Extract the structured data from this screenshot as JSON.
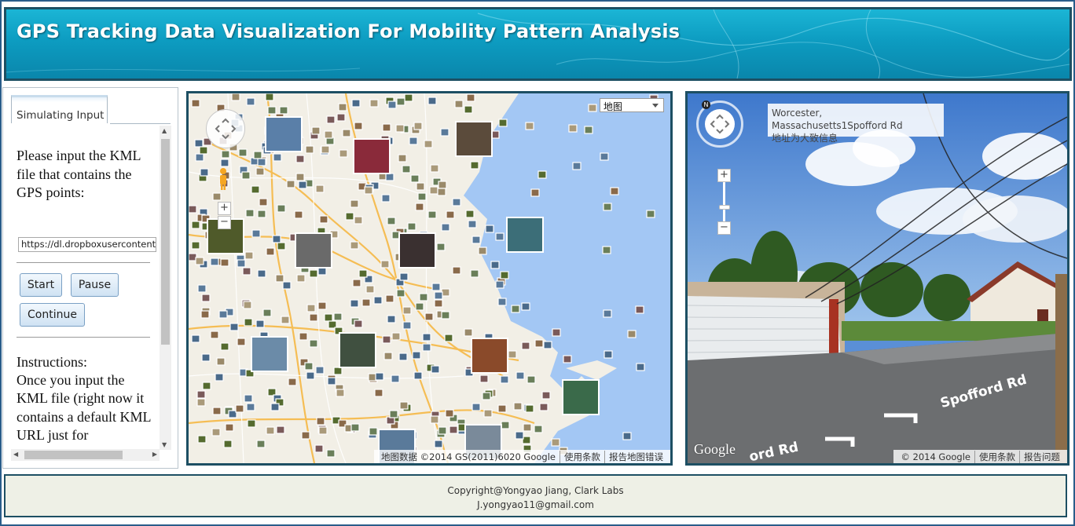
{
  "header": {
    "title": "GPS Tracking Data Visualization For Mobility Pattern Analysis"
  },
  "left_panel": {
    "tab_label": "Simulating Input",
    "prompt": "Please input the KML file that contains the GPS points:",
    "kml_url_value": "https://dl.dropboxusercontent.",
    "buttons": {
      "start": "Start",
      "pause": "Pause",
      "continue": "Continue"
    },
    "instructions_heading": "Instructions:",
    "instructions_text": "Once you input the KML file (right now it contains a default KML URL just for"
  },
  "map": {
    "map_type_selected": "地图",
    "attribution": {
      "data": "地图数据 ©2014 GS(2011)6020 Google",
      "terms": "使用条款",
      "report": "报告地图错误"
    },
    "zoom_in": "+",
    "zoom_out": "−"
  },
  "street_view": {
    "address_line1": "Worcester, Massachusetts1Spofford Rd",
    "address_line2": "地址为大致信息",
    "street_label": "Spofford Rd",
    "street_label_lower": "ord Rd",
    "google_logo": "Google",
    "attribution": {
      "copyright": "© 2014 Google",
      "terms": "使用条款",
      "report": "报告问题"
    },
    "compass_n": "N",
    "zoom_in": "+",
    "zoom_out": "−"
  },
  "footer": {
    "line1": "Copyright@Yongyao Jiang, Clark Labs",
    "line2": "J.yongyao11@gmail.com"
  },
  "colors": {
    "header_bg": "#0d9cc1",
    "border_dark": "#1d4f63",
    "footer_bg": "#eef0e6",
    "map_water": "#a3c7f4"
  }
}
